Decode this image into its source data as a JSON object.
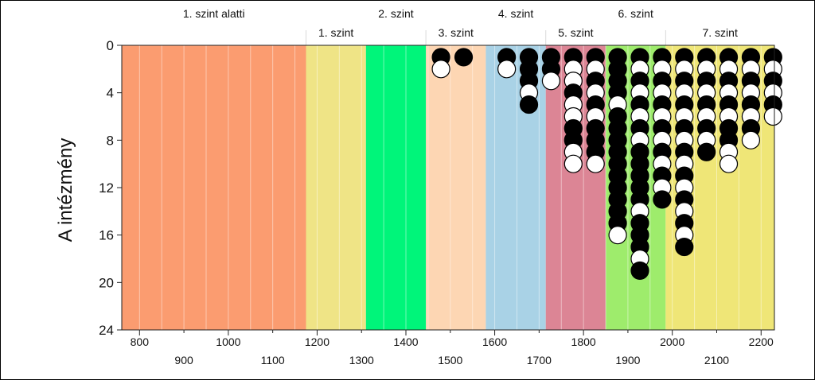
{
  "chart_data": {
    "type": "scatter",
    "ylabel": "A intézmény",
    "xlim": [
      760,
      2230
    ],
    "ylim": [
      0,
      24
    ],
    "y_inverted": true,
    "yticks": [
      0,
      4,
      8,
      12,
      16,
      20,
      24
    ],
    "xticks_upper": [
      800,
      1000,
      1200,
      1400,
      1600,
      1800,
      2000,
      2200
    ],
    "xticks_lower": [
      900,
      1100,
      1300,
      1500,
      1700,
      1900,
      2100
    ],
    "grid": "vertical-minor",
    "levels": [
      {
        "label": "1. szint alatti",
        "from": 760,
        "to": 1175,
        "color": "#fb9c70",
        "label_row": "upper"
      },
      {
        "label": "1. szint",
        "from": 1175,
        "to": 1310,
        "color": "#efe486",
        "label_row": "lower"
      },
      {
        "label": "2. szint",
        "from": 1310,
        "to": 1445,
        "color": "#00f57a",
        "label_row": "upper"
      },
      {
        "label": "3. szint",
        "from": 1445,
        "to": 1580,
        "color": "#fdd6b3",
        "label_row": "lower"
      },
      {
        "label": "4. szint",
        "from": 1580,
        "to": 1715,
        "color": "#a9d2e6",
        "label_row": "upper"
      },
      {
        "label": "5. szint",
        "from": 1715,
        "to": 1850,
        "color": "#dc8595",
        "label_row": "lower"
      },
      {
        "label": "6. szint",
        "from": 1850,
        "to": 1985,
        "color": "#9eec6c",
        "label_row": "upper"
      },
      {
        "label": "7. szint",
        "from": 1985,
        "to": 2230,
        "color": "#efe677",
        "label_row": "lower"
      }
    ],
    "columns": [
      {
        "x": 1479,
        "markers": [
          "black",
          "white"
        ]
      },
      {
        "x": 1530,
        "markers": [
          "black"
        ]
      },
      {
        "x": 1627,
        "markers": [
          "black",
          "white"
        ]
      },
      {
        "x": 1677,
        "markers": [
          "black",
          "black",
          "black",
          "white",
          "black"
        ]
      },
      {
        "x": 1727,
        "markers": [
          "black",
          "black",
          "white"
        ]
      },
      {
        "x": 1777,
        "markers": [
          "black",
          "white",
          "white",
          "black",
          "white",
          "white",
          "black",
          "black",
          "white",
          "white"
        ]
      },
      {
        "x": 1827,
        "markers": [
          "black",
          "white",
          "black",
          "white",
          "black",
          "white",
          "black",
          "black",
          "black",
          "white"
        ]
      },
      {
        "x": 1877,
        "markers": [
          "black",
          "black",
          "black",
          "black",
          "white",
          "black",
          "black",
          "black",
          "black",
          "black",
          "black",
          "black",
          "black",
          "black",
          "black",
          "white"
        ]
      },
      {
        "x": 1927,
        "markers": [
          "black",
          "white",
          "black",
          "white",
          "black",
          "white",
          "black",
          "white",
          "black",
          "black",
          "black",
          "black",
          "black",
          "white",
          "black",
          "black",
          "black",
          "white",
          "black"
        ]
      },
      {
        "x": 1977,
        "markers": [
          "black",
          "white",
          "black",
          "white",
          "black",
          "white",
          "black",
          "white",
          "black",
          "white",
          "black",
          "white",
          "black"
        ]
      },
      {
        "x": 2027,
        "markers": [
          "black",
          "white",
          "black",
          "white",
          "black",
          "white",
          "black",
          "white",
          "black",
          "white",
          "black",
          "white",
          "black",
          "white",
          "black",
          "white",
          "black"
        ]
      },
      {
        "x": 2077,
        "markers": [
          "black",
          "white",
          "black",
          "white",
          "black",
          "white",
          "black",
          "white",
          "black"
        ]
      },
      {
        "x": 2127,
        "markers": [
          "black",
          "white",
          "black",
          "white",
          "black",
          "white",
          "black",
          "black",
          "white",
          "white"
        ]
      },
      {
        "x": 2177,
        "markers": [
          "black",
          "white",
          "black",
          "white",
          "black",
          "white",
          "black",
          "white"
        ]
      },
      {
        "x": 2227,
        "markers": [
          "black",
          "white",
          "black",
          "white",
          "black",
          "white"
        ]
      }
    ]
  }
}
